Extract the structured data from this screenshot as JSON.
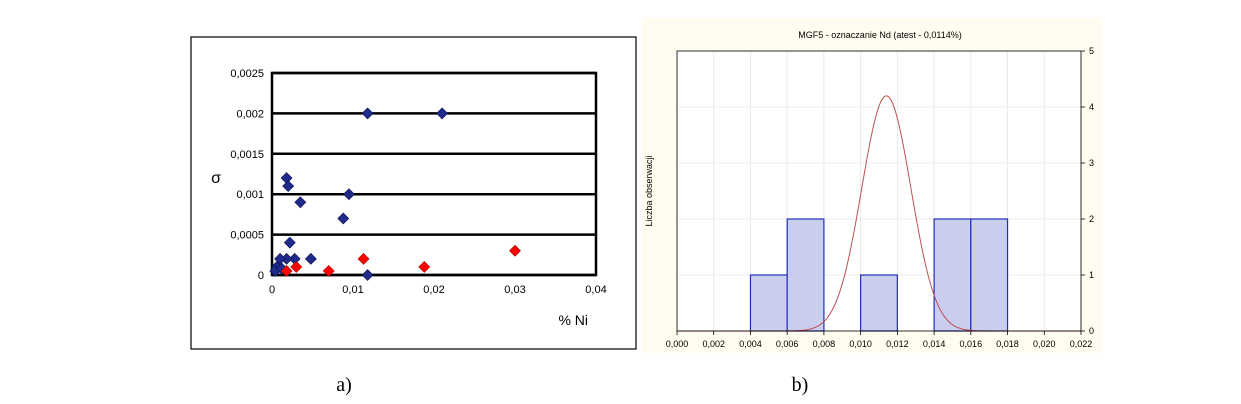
{
  "captions": {
    "a": "a)",
    "b": "b)"
  },
  "colors": {
    "series_blue": "#1f2a8a",
    "series_red": "#ff0000",
    "bar_fill": "#c9cdee",
    "bar_stroke": "#2230b8",
    "curve": "#c0504d",
    "panel_b_bg": "#fffdf0"
  },
  "chart_data": [
    {
      "type": "scatter",
      "title": "",
      "xlabel": "% Ni",
      "ylabel": "σ",
      "xlim": [
        0,
        0.04
      ],
      "ylim": [
        0,
        0.0025
      ],
      "x_ticks": [
        0,
        0.01,
        0.02,
        0.03,
        0.04
      ],
      "x_tick_labels": [
        "0",
        "0,01",
        "0,02",
        "0,03",
        "0,04"
      ],
      "y_ticks": [
        0,
        0.0005,
        0.001,
        0.0015,
        0.002,
        0.0025
      ],
      "y_tick_labels": [
        "0",
        "0,0005",
        "0,001",
        "0,0015",
        "0,002",
        "0,0025"
      ],
      "grid": "horizontal",
      "series": [
        {
          "color": "#1f2a8a",
          "points": [
            [
              0.0118,
              0.002
            ],
            [
              0.021,
              0.002
            ],
            [
              0.0018,
              0.0012
            ],
            [
              0.002,
              0.0011
            ],
            [
              0.0095,
              0.001
            ],
            [
              0.0035,
              0.0009
            ],
            [
              0.0088,
              0.0007
            ],
            [
              0.0022,
              0.0004
            ],
            [
              0.0048,
              0.0002
            ],
            [
              0.0028,
              0.0002
            ],
            [
              0.0018,
              0.0002
            ],
            [
              0.001,
              0.0002
            ],
            [
              0.0006,
              0.0001
            ],
            [
              0.0004,
              5e-05
            ],
            [
              0.0012,
              8e-05
            ],
            [
              0.0118,
              0.0
            ]
          ]
        },
        {
          "color": "#ff0000",
          "points": [
            [
              0.03,
              0.0003
            ],
            [
              0.0113,
              0.0002
            ],
            [
              0.0188,
              0.0001
            ],
            [
              0.007,
              5e-05
            ],
            [
              0.003,
              0.0001
            ],
            [
              0.0018,
              5e-05
            ]
          ]
        }
      ]
    },
    {
      "type": "bar",
      "subtype": "histogram",
      "title": "MGF5 - oznaczanie Nd (atest - 0,0114%)",
      "xlabel": "",
      "ylabel": "Liczba obserwacji",
      "xlim": [
        0,
        0.022
      ],
      "ylim": [
        0,
        5
      ],
      "x_ticks": [
        0,
        0.002,
        0.004,
        0.006,
        0.008,
        0.01,
        0.012,
        0.014,
        0.016,
        0.018,
        0.02,
        0.022
      ],
      "x_tick_labels": [
        "0,000",
        "0,002",
        "0,004",
        "0,006",
        "0,008",
        "0,010",
        "0,012",
        "0,014",
        "0,016",
        "0,018",
        "0,020",
        "0,022"
      ],
      "y_ticks": [
        0,
        1,
        2,
        3,
        4,
        5
      ],
      "y_tick_labels": [
        "0",
        "1",
        "2",
        "3",
        "4",
        "5"
      ],
      "grid": true,
      "bins": [
        {
          "from": 0.004,
          "to": 0.006,
          "count": 1
        },
        {
          "from": 0.006,
          "to": 0.008,
          "count": 2
        },
        {
          "from": 0.01,
          "to": 0.012,
          "count": 1
        },
        {
          "from": 0.014,
          "to": 0.016,
          "count": 2
        },
        {
          "from": 0.016,
          "to": 0.018,
          "count": 2
        }
      ],
      "normal_curve": {
        "mean": 0.0114,
        "sd": 0.00134,
        "peak": 4.2
      }
    }
  ]
}
